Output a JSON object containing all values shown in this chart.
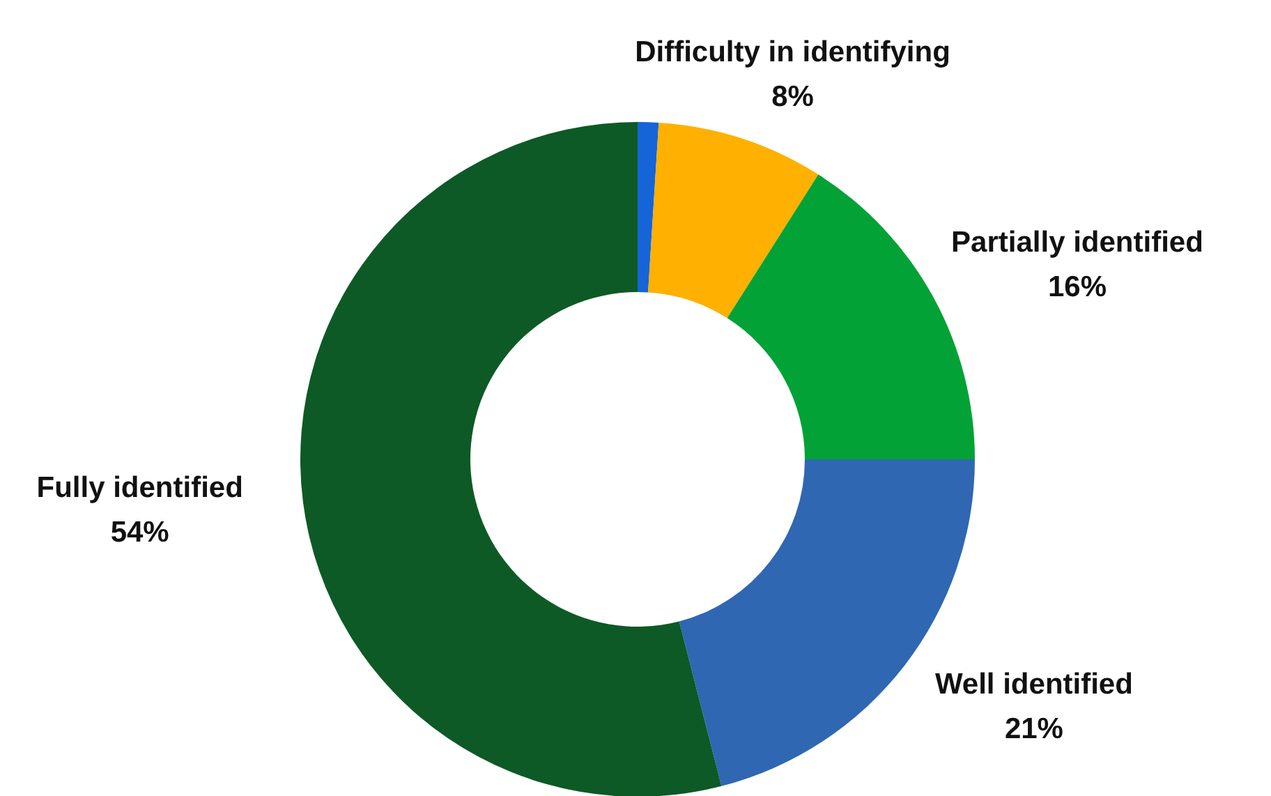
{
  "chart_data": {
    "type": "donut",
    "categories": [
      null,
      "Difficulty in identifying",
      "Partially identified",
      "Well identified",
      "Fully identified"
    ],
    "values": [
      1,
      8,
      16,
      21,
      54
    ],
    "colors": [
      "#1565d8",
      "#ffb000",
      "#02a237",
      "#2f67b2",
      "#0d5a26"
    ],
    "value_labels": [
      null,
      "8%",
      "16%",
      "21%",
      "54%"
    ]
  }
}
